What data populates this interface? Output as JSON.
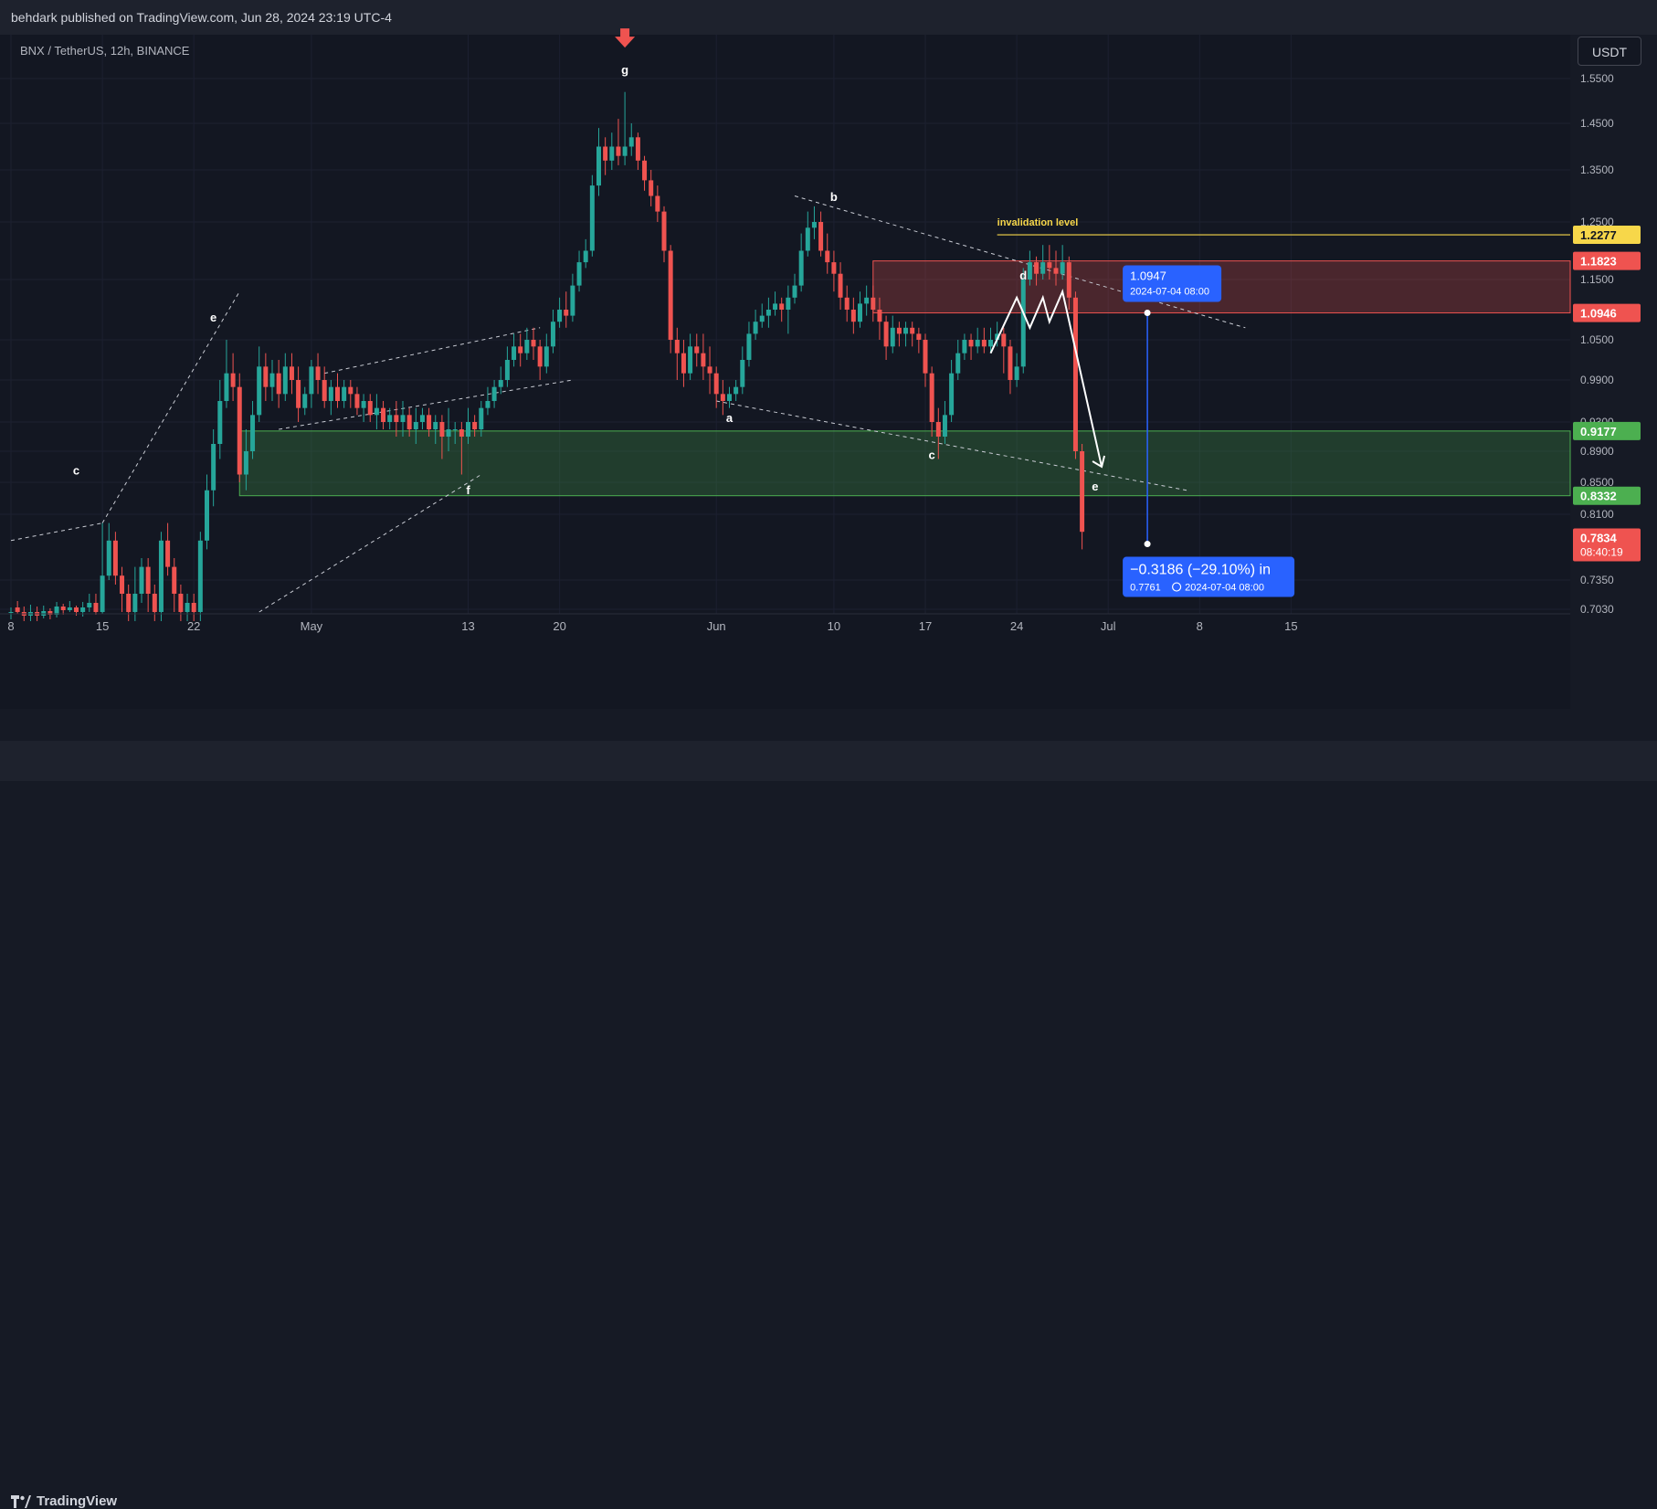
{
  "header": {
    "text": "behdark published on TradingView.com, Jun 28, 2024 23:19 UTC-4"
  },
  "symbol": {
    "title": "BNX / TetherUS, 12h, BINANCE"
  },
  "currency_button": "USDT",
  "footer": {
    "brand": "TradingView"
  },
  "colors": {
    "up": "#26a69a",
    "down": "#ef5350",
    "resistance_zone": "#ef5350",
    "support_zone": "#4caf50",
    "invalidation": "#f7d74a",
    "measure": "#2962ff"
  },
  "annotations": {
    "invalidation_label": "invalidation level",
    "wave_labels": [
      "c",
      "e",
      "f",
      "g",
      "b",
      "a",
      "c",
      "d",
      "e"
    ],
    "measure_top": {
      "price": "1.0947",
      "date": "2024-07-04 08:00"
    },
    "measure_bottom": {
      "change": "−0.3186 (−29.10%) in",
      "price": "0.7761",
      "date": "2024-07-04  08:00"
    }
  },
  "price_badges": [
    {
      "value": "1.2277",
      "color": "#f7d74a",
      "text_color": "#131722"
    },
    {
      "value": "1.1823",
      "color": "#ef5350",
      "text_color": "#ffffff"
    },
    {
      "value": "1.0946",
      "color": "#ef5350",
      "text_color": "#ffffff"
    },
    {
      "value": "0.9177",
      "color": "#4caf50",
      "text_color": "#ffffff"
    },
    {
      "value": "0.8332",
      "color": "#4caf50",
      "text_color": "#ffffff"
    },
    {
      "value": "0.7834",
      "color": "#ef5350",
      "text_color": "#ffffff",
      "sub": "08:40:19"
    }
  ],
  "chart_data": {
    "type": "candlestick",
    "title": "BNX / TetherUS, 12h, BINANCE",
    "y_ticks": [
      1.55,
      1.45,
      1.35,
      1.25,
      1.15,
      1.05,
      0.99,
      0.93,
      0.89,
      0.85,
      0.81,
      0.735,
      0.703
    ],
    "y_tick_labels": [
      "1.5500",
      "1.4500",
      "1.3500",
      "1.2500",
      "1.1500",
      "1.0500",
      "0.9900",
      "0.9300",
      "0.8900",
      "0.8500",
      "0.8100",
      "0.7350",
      "0.7030"
    ],
    "x_ticks": [
      {
        "label": "8",
        "candle": 0
      },
      {
        "label": "15",
        "candle": 14
      },
      {
        "label": "22",
        "candle": 28
      },
      {
        "label": "May",
        "candle": 46
      },
      {
        "label": "13",
        "candle": 70
      },
      {
        "label": "20",
        "candle": 84
      },
      {
        "label": "Jun",
        "candle": 108
      },
      {
        "label": "10",
        "candle": 126
      },
      {
        "label": "17",
        "candle": 140
      },
      {
        "label": "24",
        "candle": 154
      },
      {
        "label": "Jul",
        "candle": 168
      },
      {
        "label": "8",
        "candle": 182
      },
      {
        "label": "15",
        "candle": 196
      }
    ],
    "zones": [
      {
        "name": "resistance",
        "top": 1.1823,
        "bottom": 1.0946,
        "start_candle": 132
      },
      {
        "name": "support",
        "top": 0.9177,
        "bottom": 0.8332,
        "start_candle": 35
      }
    ],
    "invalidation_level": 1.2277,
    "measure": {
      "from": 1.0947,
      "to": 0.7761,
      "change": -0.3186,
      "change_pct": -29.1,
      "date": "2024-07-04 08:00"
    },
    "candles": [
      [
        0.7,
        0.7,
        0.692,
        0.705
      ],
      [
        0.705,
        0.7,
        0.698,
        0.712
      ],
      [
        0.7,
        0.696,
        0.69,
        0.706
      ],
      [
        0.696,
        0.7,
        0.69,
        0.708
      ],
      [
        0.7,
        0.696,
        0.69,
        0.706
      ],
      [
        0.696,
        0.701,
        0.693,
        0.707
      ],
      [
        0.701,
        0.697,
        0.692,
        0.704
      ],
      [
        0.697,
        0.706,
        0.694,
        0.711
      ],
      [
        0.706,
        0.702,
        0.697,
        0.709
      ],
      [
        0.702,
        0.705,
        0.7,
        0.712
      ],
      [
        0.705,
        0.7,
        0.696,
        0.707
      ],
      [
        0.7,
        0.705,
        0.695,
        0.711
      ],
      [
        0.705,
        0.71,
        0.7,
        0.72
      ],
      [
        0.71,
        0.7,
        0.697,
        0.72
      ],
      [
        0.7,
        0.74,
        0.698,
        0.8
      ],
      [
        0.74,
        0.78,
        0.735,
        0.8
      ],
      [
        0.78,
        0.74,
        0.73,
        0.79
      ],
      [
        0.74,
        0.72,
        0.7,
        0.75
      ],
      [
        0.72,
        0.7,
        0.69,
        0.73
      ],
      [
        0.7,
        0.72,
        0.69,
        0.75
      ],
      [
        0.72,
        0.75,
        0.71,
        0.76
      ],
      [
        0.75,
        0.72,
        0.7,
        0.76
      ],
      [
        0.72,
        0.7,
        0.69,
        0.73
      ],
      [
        0.7,
        0.78,
        0.69,
        0.79
      ],
      [
        0.78,
        0.75,
        0.74,
        0.8
      ],
      [
        0.75,
        0.72,
        0.7,
        0.76
      ],
      [
        0.72,
        0.7,
        0.69,
        0.73
      ],
      [
        0.7,
        0.71,
        0.69,
        0.72
      ],
      [
        0.71,
        0.7,
        0.69,
        0.72
      ],
      [
        0.7,
        0.78,
        0.69,
        0.79
      ],
      [
        0.78,
        0.84,
        0.77,
        0.86
      ],
      [
        0.84,
        0.9,
        0.82,
        0.92
      ],
      [
        0.9,
        0.96,
        0.88,
        0.99
      ],
      [
        0.96,
        1.0,
        0.95,
        1.05
      ],
      [
        1.0,
        0.98,
        0.96,
        1.03
      ],
      [
        0.98,
        0.86,
        0.85,
        1.0
      ],
      [
        0.86,
        0.89,
        0.84,
        0.92
      ],
      [
        0.89,
        0.94,
        0.88,
        0.96
      ],
      [
        0.94,
        1.01,
        0.93,
        1.04
      ],
      [
        1.01,
        0.98,
        0.96,
        1.03
      ],
      [
        0.98,
        1.0,
        0.96,
        1.02
      ],
      [
        1.0,
        0.97,
        0.95,
        1.02
      ],
      [
        0.97,
        1.01,
        0.96,
        1.03
      ],
      [
        1.01,
        0.99,
        0.97,
        1.03
      ],
      [
        0.99,
        0.95,
        0.93,
        1.01
      ],
      [
        0.95,
        0.97,
        0.94,
        0.98
      ],
      [
        0.97,
        1.01,
        0.95,
        1.02
      ],
      [
        1.01,
        0.99,
        0.97,
        1.03
      ],
      [
        0.99,
        0.96,
        0.95,
        1.01
      ],
      [
        0.96,
        0.98,
        0.94,
        0.99
      ],
      [
        0.98,
        0.96,
        0.95,
        1.0
      ],
      [
        0.96,
        0.98,
        0.95,
        0.99
      ],
      [
        0.98,
        0.97,
        0.95,
        0.99
      ],
      [
        0.97,
        0.95,
        0.94,
        0.98
      ],
      [
        0.95,
        0.96,
        0.93,
        0.97
      ],
      [
        0.96,
        0.94,
        0.93,
        0.97
      ],
      [
        0.94,
        0.95,
        0.92,
        0.97
      ],
      [
        0.95,
        0.93,
        0.92,
        0.96
      ],
      [
        0.93,
        0.94,
        0.92,
        0.95
      ],
      [
        0.94,
        0.93,
        0.91,
        0.96
      ],
      [
        0.93,
        0.94,
        0.91,
        0.96
      ],
      [
        0.94,
        0.92,
        0.91,
        0.95
      ],
      [
        0.92,
        0.93,
        0.9,
        0.95
      ],
      [
        0.93,
        0.94,
        0.92,
        0.95
      ],
      [
        0.94,
        0.92,
        0.91,
        0.95
      ],
      [
        0.92,
        0.93,
        0.9,
        0.94
      ],
      [
        0.93,
        0.91,
        0.88,
        0.94
      ],
      [
        0.91,
        0.92,
        0.89,
        0.95
      ],
      [
        0.92,
        0.92,
        0.9,
        0.93
      ],
      [
        0.92,
        0.91,
        0.86,
        0.93
      ],
      [
        0.91,
        0.93,
        0.9,
        0.95
      ],
      [
        0.93,
        0.92,
        0.91,
        0.94
      ],
      [
        0.92,
        0.95,
        0.91,
        0.96
      ],
      [
        0.95,
        0.96,
        0.94,
        0.98
      ],
      [
        0.96,
        0.98,
        0.95,
        0.99
      ],
      [
        0.98,
        0.99,
        0.97,
        1.01
      ],
      [
        0.99,
        1.02,
        0.98,
        1.04
      ],
      [
        1.02,
        1.04,
        1.01,
        1.06
      ],
      [
        1.04,
        1.03,
        1.01,
        1.06
      ],
      [
        1.03,
        1.05,
        1.02,
        1.07
      ],
      [
        1.05,
        1.04,
        1.02,
        1.07
      ],
      [
        1.04,
        1.01,
        0.99,
        1.05
      ],
      [
        1.01,
        1.04,
        1.0,
        1.06
      ],
      [
        1.04,
        1.08,
        1.03,
        1.1
      ],
      [
        1.08,
        1.1,
        1.07,
        1.12
      ],
      [
        1.1,
        1.09,
        1.07,
        1.13
      ],
      [
        1.09,
        1.14,
        1.08,
        1.16
      ],
      [
        1.14,
        1.18,
        1.13,
        1.2
      ],
      [
        1.18,
        1.2,
        1.17,
        1.22
      ],
      [
        1.2,
        1.32,
        1.19,
        1.34
      ],
      [
        1.32,
        1.4,
        1.3,
        1.44
      ],
      [
        1.4,
        1.37,
        1.34,
        1.42
      ],
      [
        1.37,
        1.4,
        1.35,
        1.43
      ],
      [
        1.4,
        1.38,
        1.36,
        1.46
      ],
      [
        1.38,
        1.4,
        1.36,
        1.52
      ],
      [
        1.4,
        1.42,
        1.38,
        1.45
      ],
      [
        1.42,
        1.37,
        1.35,
        1.43
      ],
      [
        1.37,
        1.33,
        1.31,
        1.38
      ],
      [
        1.33,
        1.3,
        1.28,
        1.35
      ],
      [
        1.3,
        1.27,
        1.25,
        1.32
      ],
      [
        1.27,
        1.2,
        1.18,
        1.28
      ],
      [
        1.2,
        1.05,
        1.03,
        1.21
      ],
      [
        1.05,
        1.03,
        0.99,
        1.07
      ],
      [
        1.03,
        1.0,
        0.98,
        1.05
      ],
      [
        1.0,
        1.04,
        0.99,
        1.06
      ],
      [
        1.04,
        1.03,
        1.01,
        1.06
      ],
      [
        1.03,
        1.01,
        0.99,
        1.06
      ],
      [
        1.01,
        1.0,
        0.97,
        1.04
      ],
      [
        1.0,
        0.97,
        0.95,
        1.01
      ],
      [
        0.97,
        0.96,
        0.94,
        0.99
      ],
      [
        0.96,
        0.97,
        0.95,
        0.98
      ],
      [
        0.97,
        0.98,
        0.96,
        0.99
      ],
      [
        0.98,
        1.02,
        0.97,
        1.04
      ],
      [
        1.02,
        1.06,
        1.01,
        1.08
      ],
      [
        1.06,
        1.08,
        1.05,
        1.1
      ],
      [
        1.08,
        1.09,
        1.07,
        1.11
      ],
      [
        1.09,
        1.1,
        1.07,
        1.12
      ],
      [
        1.1,
        1.11,
        1.09,
        1.13
      ],
      [
        1.11,
        1.1,
        1.08,
        1.12
      ],
      [
        1.1,
        1.12,
        1.06,
        1.14
      ],
      [
        1.12,
        1.14,
        1.11,
        1.16
      ],
      [
        1.14,
        1.2,
        1.13,
        1.23
      ],
      [
        1.2,
        1.24,
        1.19,
        1.27
      ],
      [
        1.24,
        1.25,
        1.22,
        1.28
      ],
      [
        1.25,
        1.2,
        1.19,
        1.27
      ],
      [
        1.2,
        1.18,
        1.16,
        1.23
      ],
      [
        1.18,
        1.16,
        1.13,
        1.2
      ],
      [
        1.16,
        1.12,
        1.1,
        1.18
      ],
      [
        1.12,
        1.1,
        1.08,
        1.14
      ],
      [
        1.1,
        1.08,
        1.06,
        1.12
      ],
      [
        1.08,
        1.11,
        1.07,
        1.13
      ],
      [
        1.11,
        1.12,
        1.09,
        1.14
      ],
      [
        1.12,
        1.1,
        1.08,
        1.14
      ],
      [
        1.1,
        1.08,
        1.05,
        1.12
      ],
      [
        1.08,
        1.04,
        1.02,
        1.09
      ],
      [
        1.04,
        1.07,
        1.03,
        1.09
      ],
      [
        1.07,
        1.06,
        1.04,
        1.08
      ],
      [
        1.06,
        1.07,
        1.04,
        1.08
      ],
      [
        1.07,
        1.06,
        1.04,
        1.08
      ],
      [
        1.06,
        1.05,
        1.03,
        1.07
      ],
      [
        1.05,
        1.0,
        0.98,
        1.06
      ],
      [
        1.0,
        0.93,
        0.91,
        1.01
      ],
      [
        0.93,
        0.91,
        0.88,
        0.95
      ],
      [
        0.91,
        0.94,
        0.9,
        0.96
      ],
      [
        0.94,
        1.0,
        0.93,
        1.02
      ],
      [
        1.0,
        1.03,
        0.99,
        1.05
      ],
      [
        1.03,
        1.05,
        1.02,
        1.06
      ],
      [
        1.05,
        1.04,
        1.02,
        1.06
      ],
      [
        1.04,
        1.05,
        1.03,
        1.07
      ],
      [
        1.05,
        1.04,
        1.03,
        1.07
      ],
      [
        1.04,
        1.05,
        1.03,
        1.07
      ],
      [
        1.05,
        1.06,
        1.04,
        1.08
      ],
      [
        1.06,
        1.04,
        1.0,
        1.07
      ],
      [
        1.04,
        0.99,
        0.97,
        1.05
      ],
      [
        0.99,
        1.01,
        0.98,
        1.03
      ],
      [
        1.01,
        1.15,
        1.0,
        1.17
      ],
      [
        1.15,
        1.18,
        1.14,
        1.2
      ],
      [
        1.18,
        1.16,
        1.14,
        1.19
      ],
      [
        1.16,
        1.18,
        1.15,
        1.21
      ],
      [
        1.18,
        1.17,
        1.15,
        1.21
      ],
      [
        1.17,
        1.16,
        1.14,
        1.2
      ],
      [
        1.16,
        1.18,
        1.15,
        1.21
      ],
      [
        1.18,
        1.12,
        1.1,
        1.19
      ],
      [
        1.12,
        0.89,
        0.88,
        1.13
      ],
      [
        0.89,
        0.79,
        0.77,
        0.9
      ]
    ]
  }
}
